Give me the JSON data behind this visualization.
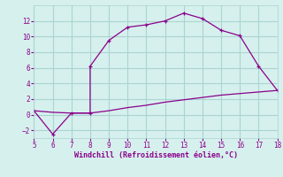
{
  "line1_x": [
    5,
    6,
    7,
    8,
    8,
    9,
    10,
    11,
    12,
    13,
    14,
    15,
    16,
    17,
    18
  ],
  "line1_y": [
    0.5,
    -2.5,
    0.2,
    0.2,
    6.2,
    9.5,
    11.2,
    11.5,
    12.0,
    13.0,
    12.3,
    10.8,
    10.1,
    6.2,
    3.1
  ],
  "line2_x": [
    5,
    6,
    7,
    8,
    9,
    10,
    11,
    12,
    13,
    14,
    15,
    16,
    17,
    18
  ],
  "line2_y": [
    0.5,
    0.3,
    0.2,
    0.2,
    0.5,
    0.9,
    1.2,
    1.6,
    1.9,
    2.2,
    2.5,
    2.7,
    2.9,
    3.1
  ],
  "line_color": "#8b008b",
  "background_color": "#d6f0ee",
  "grid_color": "#aad4d0",
  "xlabel": "Windchill (Refroidissement éolien,°C)",
  "xlim": [
    5,
    18
  ],
  "ylim": [
    -3,
    14
  ],
  "xticks": [
    5,
    6,
    7,
    8,
    9,
    10,
    11,
    12,
    13,
    14,
    15,
    16,
    17,
    18
  ],
  "yticks": [
    -2,
    0,
    2,
    4,
    6,
    8,
    10,
    12
  ],
  "tick_color": "#8b008b",
  "label_color": "#8b008b",
  "marker": "+"
}
